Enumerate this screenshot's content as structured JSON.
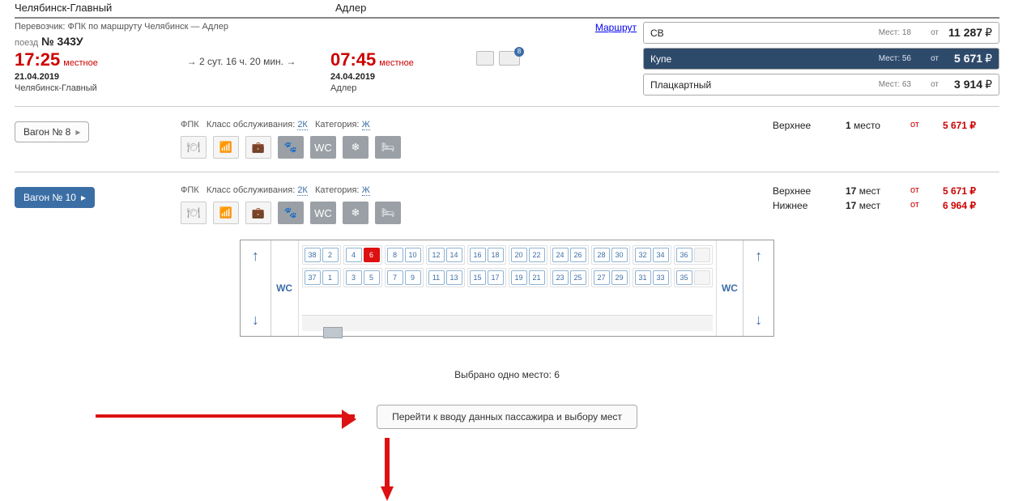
{
  "header": {
    "from": "Челябинск-Главный",
    "to": "Адлер"
  },
  "carrier_line": "Перевозчик: ФПК   по маршруту Челябинск — Адлер",
  "route_link": "Маршрут",
  "train": {
    "label": "поезд",
    "number": "№ 343У"
  },
  "depart": {
    "time": "17:25",
    "loc": "местное",
    "date": "21.04.2019",
    "station": "Челябинск-Главный"
  },
  "duration": "→ 2 сут. 16 ч. 20 мин. →",
  "arrive": {
    "time": "07:45",
    "loc": "местное",
    "date": "24.04.2019",
    "station": "Адлер"
  },
  "baggage_badge": "8",
  "classes": [
    {
      "name": "СВ",
      "seats_lbl": "Мест:",
      "seats": "18",
      "from": "от",
      "price": "11 287",
      "cur": "₽",
      "active": false
    },
    {
      "name": "Купе",
      "seats_lbl": "Мест:",
      "seats": "56",
      "from": "от",
      "price": "5 671",
      "cur": "₽",
      "active": true
    },
    {
      "name": "Плацкартный",
      "seats_lbl": "Мест:",
      "seats": "63",
      "from": "от",
      "price": "3 914",
      "cur": "₽",
      "active": false
    }
  ],
  "wagons": [
    {
      "btn": "Вагон № 8",
      "active": false,
      "info": {
        "fpk": "ФПК",
        "service_lbl": "Класс обслуживания:",
        "service": "2К",
        "cat_lbl": "Категория:",
        "cat": "Ж"
      },
      "prices": [
        {
          "lab": "Верхнее",
          "cnt": "1 место",
          "ot": "от",
          "pr": "5 671 ₽"
        }
      ]
    },
    {
      "btn": "Вагон № 10",
      "active": true,
      "info": {
        "fpk": "ФПК",
        "service_lbl": "Класс обслуживания:",
        "service": "2К",
        "cat_lbl": "Категория:",
        "cat": "Ж"
      },
      "prices": [
        {
          "lab": "Верхнее",
          "cnt": "17 мест",
          "ot": "от",
          "pr": "5 671 ₽"
        },
        {
          "lab": "Нижнее",
          "cnt": "17 мест",
          "ot": "от",
          "pr": "6 964 ₽"
        }
      ]
    }
  ],
  "wc": "WC",
  "top_row": [
    [
      "38",
      "2"
    ],
    [
      "4",
      "6"
    ],
    [
      "8",
      "10"
    ],
    [
      "12",
      "14"
    ],
    [
      "16",
      "18"
    ],
    [
      "20",
      "22"
    ],
    [
      "24",
      "26"
    ],
    [
      "28",
      "30"
    ],
    [
      "32",
      "34"
    ],
    [
      "36"
    ]
  ],
  "bot_row": [
    [
      "37",
      "1"
    ],
    [
      "3",
      "5"
    ],
    [
      "7",
      "9"
    ],
    [
      "11",
      "13"
    ],
    [
      "15",
      "17"
    ],
    [
      "19",
      "21"
    ],
    [
      "23",
      "25"
    ],
    [
      "27",
      "29"
    ],
    [
      "31",
      "33"
    ],
    [
      "35"
    ]
  ],
  "selected_seat": "6",
  "summary": "Выбрано одно место: 6",
  "go_btn": "Перейти к вводу данных пассажира и выбору мест"
}
